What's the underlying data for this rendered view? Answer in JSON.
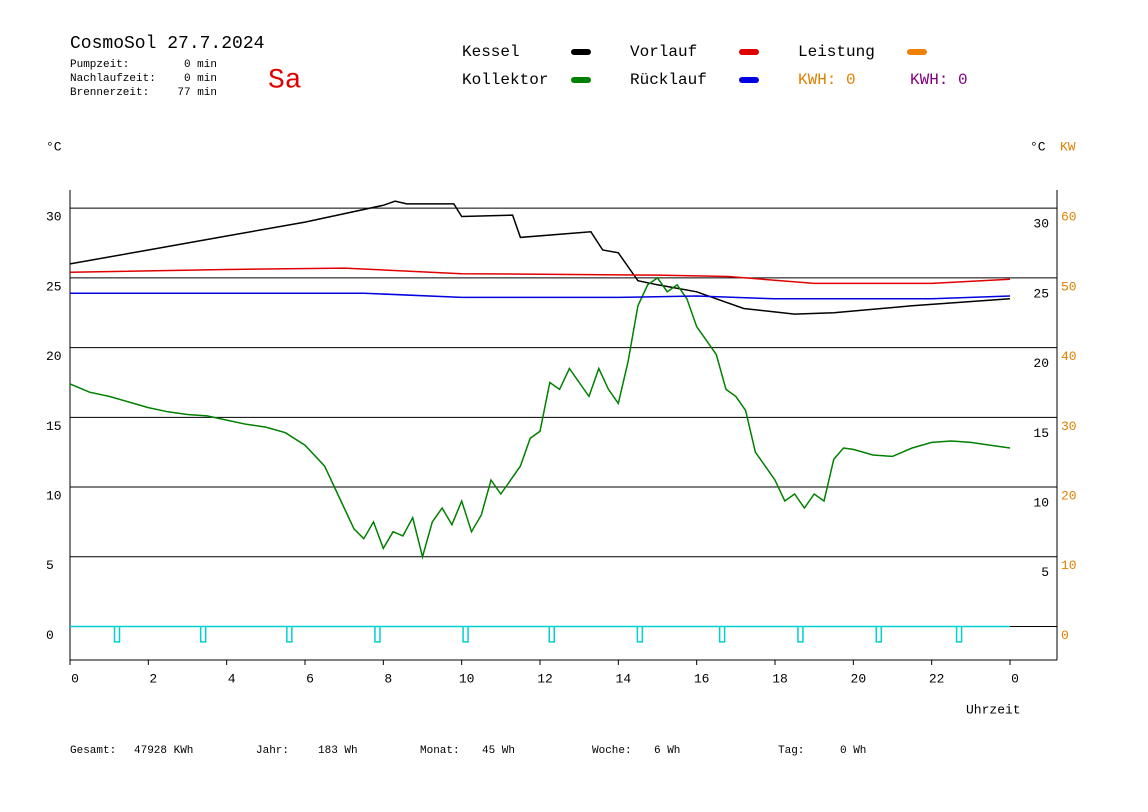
{
  "header": {
    "title": "CosmoSol 27.7.2024",
    "day": "Sa",
    "stats": [
      {
        "label": "Pumpzeit:",
        "value": "0 min"
      },
      {
        "label": "Nachlaufzeit:",
        "value": "0 min"
      },
      {
        "label": "Brennerzeit:",
        "value": "77 min"
      }
    ]
  },
  "footer": [
    {
      "label": "Gesamt:",
      "value": "47928 KWh"
    },
    {
      "label": "Jahr:",
      "value": "183 Wh"
    },
    {
      "label": "Monat:",
      "value": "45 Wh"
    },
    {
      "label": "Woche:",
      "value": "6 Wh"
    },
    {
      "label": "Tag:",
      "value": "0 Wh"
    }
  ],
  "kwh": [
    {
      "label": "KWH: 0",
      "color": "#e08000"
    },
    {
      "label": "KWH: 0",
      "color": "#800080"
    }
  ],
  "chart_data": {
    "type": "line",
    "xlabel": "Uhrzeit",
    "ylabel": "°C",
    "y2label_c": "°C",
    "y2label": "KW",
    "grid": true,
    "xlim": [
      0,
      25.2
    ],
    "xticks": [
      0,
      2,
      4,
      6,
      8,
      10,
      12,
      14,
      16,
      18,
      20,
      22,
      {
        "value": 24,
        "label": "0"
      }
    ],
    "ylim": [
      -2.4,
      31.3
    ],
    "yticks": [
      0,
      5,
      10,
      15,
      20,
      25,
      30
    ],
    "right_yticks": [
      5,
      10,
      15,
      20,
      25,
      30
    ],
    "y2lim": [
      -4.8,
      62.6
    ],
    "y2ticks": [
      0,
      10,
      20,
      30,
      40,
      50,
      60
    ],
    "series": [
      {
        "name": "Kessel",
        "color": "#000000",
        "x": [
          0,
          2,
          4,
          6,
          8,
          8.3,
          8.6,
          9.8,
          10,
          11.3,
          11.5,
          13.3,
          13.6,
          14,
          14.5,
          15,
          16,
          16.5,
          17.2,
          18.5,
          19.5,
          21.5,
          24
        ],
        "values": [
          26,
          27,
          28,
          29,
          30.2,
          30.5,
          30.3,
          30.3,
          29.4,
          29.5,
          27.9,
          28.3,
          27,
          26.8,
          24.8,
          24.5,
          24,
          23.5,
          22.8,
          22.4,
          22.5,
          23,
          23.5
        ]
      },
      {
        "name": "Vorlauf",
        "color": "#e00000",
        "x": [
          0,
          4,
          7,
          10,
          15,
          16.8,
          19,
          22,
          24
        ],
        "values": [
          25.4,
          25.6,
          25.7,
          25.3,
          25.2,
          25.1,
          24.6,
          24.6,
          24.9
        ]
      },
      {
        "name": "Leistung",
        "color": "#f08000",
        "axis": "y2",
        "x": [],
        "values": []
      },
      {
        "name": "Kollektor",
        "color": "#008000",
        "x": [
          0,
          0.5,
          1,
          1.5,
          2,
          2.5,
          3,
          3.5,
          4,
          4.5,
          5,
          5.5,
          6,
          6.5,
          7,
          7.25,
          7.5,
          7.75,
          8,
          8.25,
          8.5,
          8.75,
          9,
          9.25,
          9.5,
          9.75,
          10,
          10.25,
          10.5,
          10.75,
          11,
          11.25,
          11.5,
          11.75,
          12,
          12.25,
          12.5,
          12.75,
          13,
          13.25,
          13.5,
          13.75,
          14,
          14.25,
          14.5,
          14.75,
          15,
          15.25,
          15.5,
          15.75,
          16,
          16.25,
          16.5,
          16.75,
          17,
          17.25,
          17.5,
          17.75,
          18,
          18.25,
          18.5,
          18.75,
          19,
          19.25,
          19.5,
          19.75,
          20,
          20.5,
          21,
          21.5,
          22,
          22.5,
          23,
          23.5,
          24
        ],
        "values": [
          17.4,
          16.8,
          16.5,
          16.1,
          15.7,
          15.4,
          15.2,
          15.1,
          14.8,
          14.5,
          14.3,
          13.9,
          13,
          11.5,
          8.5,
          7,
          6.3,
          7.5,
          5.6,
          6.8,
          6.5,
          7.8,
          5,
          7.5,
          8.5,
          7.3,
          9,
          6.8,
          8,
          10.5,
          9.5,
          10.5,
          11.5,
          13.5,
          14,
          17.5,
          17,
          18.5,
          17.5,
          16.5,
          18.5,
          17,
          16,
          19,
          23,
          24.5,
          25,
          24,
          24.5,
          23.5,
          21.5,
          20.5,
          19.5,
          17,
          16.5,
          15.5,
          12.5,
          11.5,
          10.5,
          9,
          9.5,
          8.5,
          9.5,
          9,
          12,
          12.8,
          12.7,
          12.3,
          12.2,
          12.8,
          13.2,
          13.3,
          13.2,
          13,
          12.8
        ]
      },
      {
        "name": "Rücklauf",
        "color": "#0000e0",
        "x": [
          0,
          7.5,
          10,
          14,
          16,
          18,
          22,
          24
        ],
        "values": [
          23.9,
          23.9,
          23.6,
          23.6,
          23.7,
          23.5,
          23.5,
          23.7
        ]
      }
    ],
    "pulses": {
      "color": "#00d0d0",
      "x": [
        1.2,
        3.4,
        5.6,
        7.85,
        10.1,
        12.3,
        14.55,
        16.65,
        18.65,
        20.65,
        22.7
      ],
      "depth": -1.1,
      "xlim": [
        0,
        24
      ]
    }
  }
}
